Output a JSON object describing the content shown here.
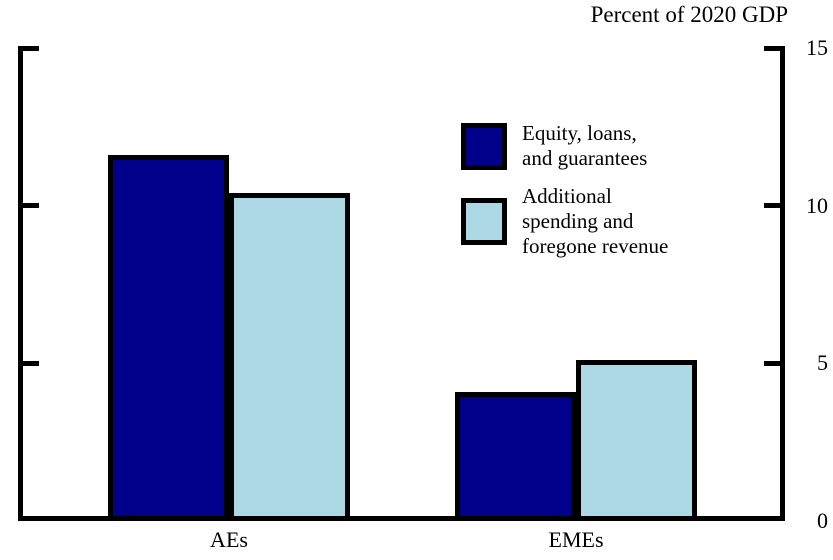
{
  "chart_data": {
    "type": "bar",
    "title": "Percent of 2020 GDP",
    "categories": [
      "AEs",
      "EMEs"
    ],
    "series": [
      {
        "name": "Equity, loans, and guarantees",
        "label": "Equity, loans,\nand guarantees",
        "color": "#00008B",
        "values": [
          11.6,
          4.1
        ]
      },
      {
        "name": "Additional spending and foregone revenue",
        "label": "Additional\nspending and\nforegone revenue",
        "color": "#ADD8E6",
        "values": [
          10.4,
          5.1
        ]
      }
    ],
    "xlabel": "",
    "ylabel": "",
    "ylim": [
      0,
      15
    ],
    "yticks": [
      0,
      5,
      10,
      15
    ],
    "ytick_label_side": "right",
    "grid": false,
    "legend_position": "inside-upper-right",
    "bar_border_color": "#000000",
    "axis_color": "#000000",
    "background": "#FFFFFF"
  }
}
